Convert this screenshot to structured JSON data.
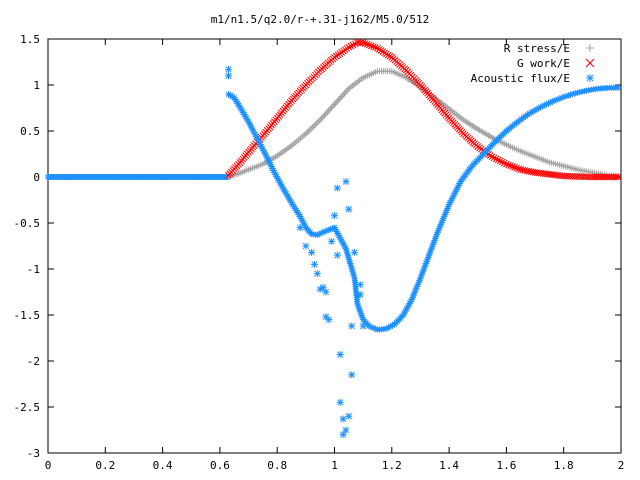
{
  "chart_data": {
    "type": "scatter",
    "title": "m1/n1.5/q2.0/r-+.31-j162/M5.0/512",
    "xlabel": "",
    "ylabel": "",
    "xlim": [
      0,
      2
    ],
    "ylim": [
      -3,
      1.5
    ],
    "grid": false,
    "legend_position": "top-right",
    "x_ticks": [
      "0",
      "0.2",
      "0.4",
      "0.6",
      "0.8",
      "1",
      "1.2",
      "1.4",
      "1.6",
      "1.8",
      "2"
    ],
    "y_ticks": [
      "1.5",
      "1",
      "0.5",
      "0",
      "-0.5",
      "-1",
      "-1.5",
      "-2",
      "-2.5",
      "-3"
    ],
    "series": [
      {
        "name": "R stress/E",
        "marker": "+",
        "color": "#a0a0a0",
        "points": [
          [
            0.63,
            0.0
          ],
          [
            0.66,
            0.03
          ],
          [
            0.7,
            0.08
          ],
          [
            0.75,
            0.14
          ],
          [
            0.8,
            0.23
          ],
          [
            0.85,
            0.34
          ],
          [
            0.9,
            0.47
          ],
          [
            0.95,
            0.62
          ],
          [
            1.0,
            0.79
          ],
          [
            1.05,
            0.96
          ],
          [
            1.1,
            1.08
          ],
          [
            1.15,
            1.15
          ],
          [
            1.2,
            1.15
          ],
          [
            1.25,
            1.08
          ],
          [
            1.3,
            0.98
          ],
          [
            1.35,
            0.86
          ],
          [
            1.4,
            0.74
          ],
          [
            1.45,
            0.62
          ],
          [
            1.5,
            0.52
          ],
          [
            1.55,
            0.43
          ],
          [
            1.6,
            0.35
          ],
          [
            1.65,
            0.28
          ],
          [
            1.7,
            0.22
          ],
          [
            1.75,
            0.16
          ],
          [
            1.8,
            0.12
          ],
          [
            1.85,
            0.08
          ],
          [
            1.9,
            0.05
          ],
          [
            1.95,
            0.02
          ],
          [
            1.99,
            0.01
          ]
        ]
      },
      {
        "name": "G work/E",
        "marker": "x",
        "color": "#ff0000",
        "points": [
          [
            0.63,
            0.02
          ],
          [
            0.66,
            0.12
          ],
          [
            0.7,
            0.27
          ],
          [
            0.75,
            0.45
          ],
          [
            0.8,
            0.64
          ],
          [
            0.85,
            0.83
          ],
          [
            0.9,
            1.0
          ],
          [
            0.95,
            1.16
          ],
          [
            1.0,
            1.3
          ],
          [
            1.05,
            1.41
          ],
          [
            1.08,
            1.46
          ],
          [
            1.1,
            1.46
          ],
          [
            1.15,
            1.4
          ],
          [
            1.2,
            1.3
          ],
          [
            1.25,
            1.16
          ],
          [
            1.3,
            1.0
          ],
          [
            1.35,
            0.82
          ],
          [
            1.4,
            0.64
          ],
          [
            1.45,
            0.47
          ],
          [
            1.5,
            0.33
          ],
          [
            1.55,
            0.22
          ],
          [
            1.6,
            0.14
          ],
          [
            1.65,
            0.08
          ],
          [
            1.7,
            0.05
          ],
          [
            1.75,
            0.03
          ],
          [
            1.8,
            0.01
          ],
          [
            1.9,
            0.0
          ],
          [
            1.99,
            0.0
          ]
        ]
      },
      {
        "name": "Acoustic flux/E",
        "marker": "*",
        "color": "#1e90ff",
        "points": [
          [
            0.63,
            0.9
          ],
          [
            0.65,
            0.86
          ],
          [
            0.67,
            0.76
          ],
          [
            0.7,
            0.6
          ],
          [
            0.73,
            0.42
          ],
          [
            0.76,
            0.24
          ],
          [
            0.79,
            0.05
          ],
          [
            0.82,
            -0.12
          ],
          [
            0.85,
            -0.28
          ],
          [
            0.88,
            -0.43
          ],
          [
            0.9,
            -0.55
          ],
          [
            0.92,
            -0.62
          ],
          [
            0.94,
            -0.63
          ],
          [
            0.96,
            -0.6
          ],
          [
            1.0,
            -0.55
          ],
          [
            1.04,
            -0.78
          ],
          [
            1.07,
            -1.1
          ],
          [
            1.08,
            -1.38
          ],
          [
            1.1,
            -1.55
          ],
          [
            1.12,
            -1.62
          ],
          [
            1.15,
            -1.66
          ],
          [
            1.18,
            -1.65
          ],
          [
            1.21,
            -1.6
          ],
          [
            1.24,
            -1.5
          ],
          [
            1.27,
            -1.33
          ],
          [
            1.3,
            -1.1
          ],
          [
            1.33,
            -0.85
          ],
          [
            1.36,
            -0.6
          ],
          [
            1.4,
            -0.3
          ],
          [
            1.44,
            -0.05
          ],
          [
            1.48,
            0.12
          ],
          [
            1.52,
            0.25
          ],
          [
            1.56,
            0.38
          ],
          [
            1.6,
            0.5
          ],
          [
            1.64,
            0.6
          ],
          [
            1.68,
            0.69
          ],
          [
            1.72,
            0.76
          ],
          [
            1.76,
            0.82
          ],
          [
            1.8,
            0.87
          ],
          [
            1.84,
            0.91
          ],
          [
            1.88,
            0.94
          ],
          [
            1.92,
            0.96
          ],
          [
            1.96,
            0.97
          ],
          [
            1.99,
            0.97
          ]
        ],
        "scatter_points": [
          [
            0.63,
            1.17
          ],
          [
            0.63,
            1.1
          ],
          [
            0.88,
            -0.55
          ],
          [
            0.9,
            -0.75
          ],
          [
            0.92,
            -0.82
          ],
          [
            0.93,
            -0.95
          ],
          [
            0.94,
            -1.05
          ],
          [
            0.95,
            -1.22
          ],
          [
            0.96,
            -1.2
          ],
          [
            0.97,
            -1.25
          ],
          [
            0.97,
            -1.52
          ],
          [
            0.98,
            -1.55
          ],
          [
            0.99,
            -0.7
          ],
          [
            1.0,
            -0.42
          ],
          [
            1.01,
            -0.85
          ],
          [
            1.01,
            -0.12
          ],
          [
            1.02,
            -1.93
          ],
          [
            1.02,
            -2.45
          ],
          [
            1.03,
            -2.63
          ],
          [
            1.03,
            -2.8
          ],
          [
            1.04,
            -2.75
          ],
          [
            1.04,
            -0.05
          ],
          [
            1.05,
            -2.6
          ],
          [
            1.05,
            -0.35
          ],
          [
            1.06,
            -2.15
          ],
          [
            1.06,
            -1.62
          ],
          [
            1.07,
            -0.82
          ],
          [
            1.08,
            -1.28
          ],
          [
            1.09,
            -1.28
          ],
          [
            1.09,
            -1.17
          ],
          [
            1.1,
            -1.62
          ]
        ]
      }
    ],
    "flat_zero_segment": [
      0.0,
      0.63
    ]
  }
}
